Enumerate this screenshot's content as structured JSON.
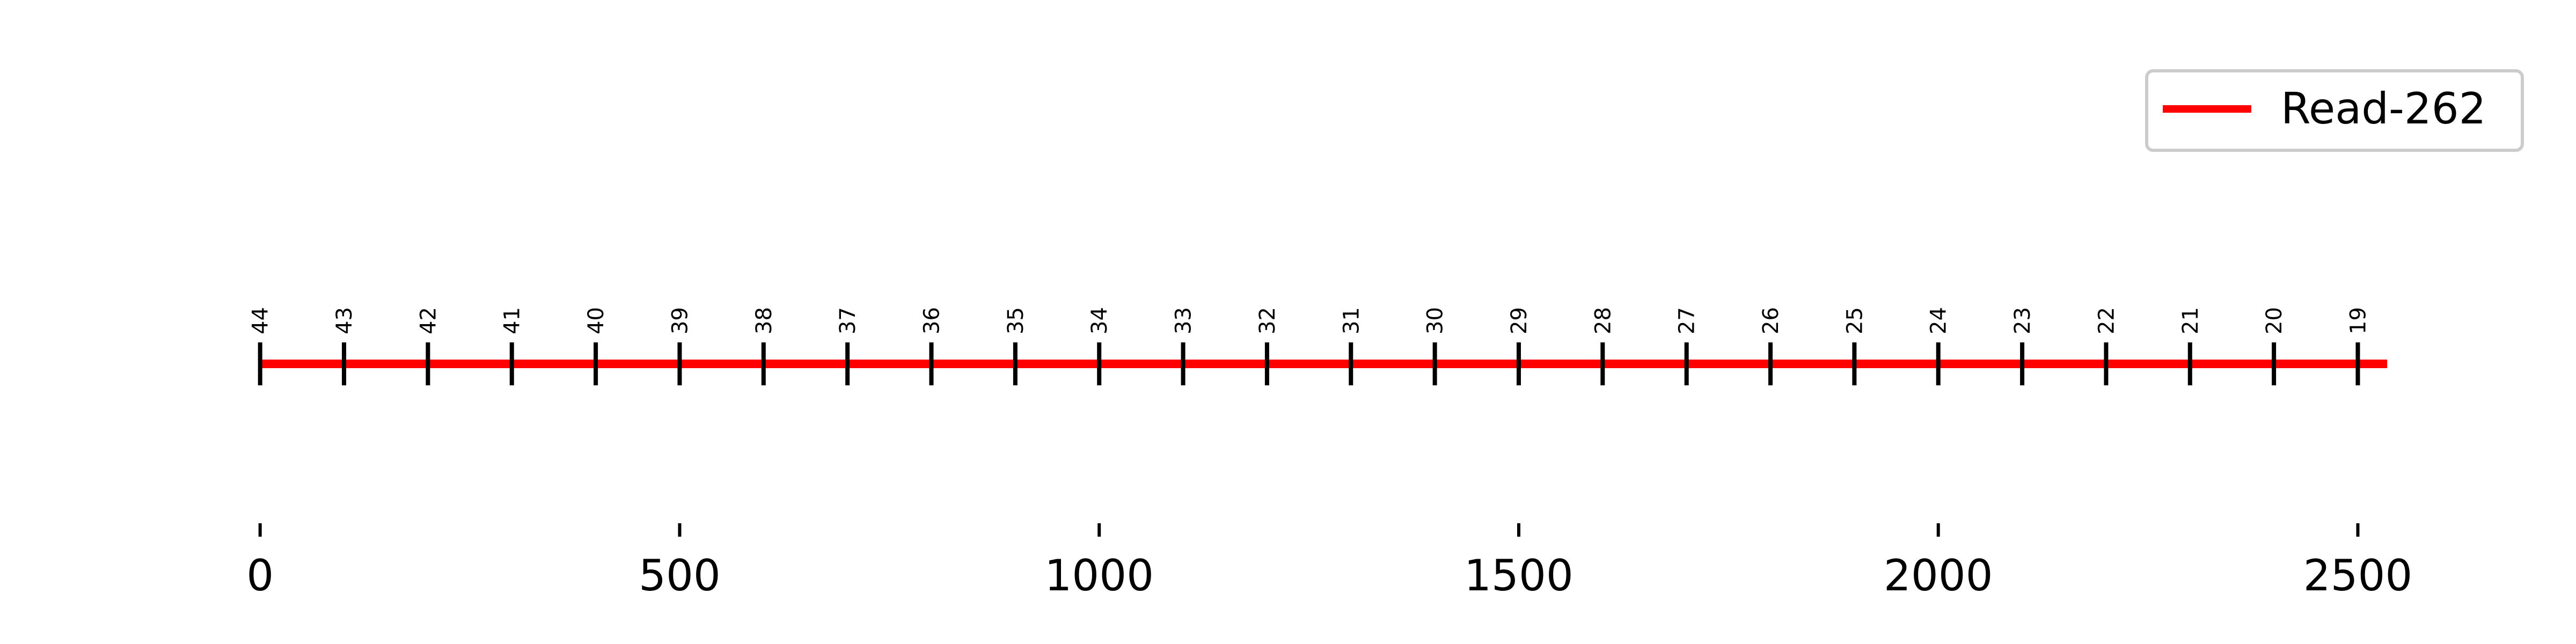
{
  "chart_data": {
    "type": "line",
    "series": [
      {
        "name": "Read-262",
        "color": "#ff0000",
        "x_start": 0,
        "x_end": 2535,
        "positions": [
          0,
          100,
          200,
          300,
          400,
          500,
          600,
          700,
          800,
          900,
          1000,
          1100,
          1200,
          1300,
          1400,
          1500,
          1600,
          1700,
          1800,
          1900,
          2000,
          2100,
          2200,
          2300,
          2400,
          2500
        ],
        "position_labels": [
          "44",
          "43",
          "42",
          "41",
          "40",
          "39",
          "38",
          "37",
          "36",
          "35",
          "34",
          "33",
          "32",
          "31",
          "30",
          "29",
          "28",
          "27",
          "26",
          "25",
          "24",
          "23",
          "22",
          "21",
          "20",
          "19"
        ]
      }
    ],
    "x_ticks": [
      0,
      500,
      1000,
      1500,
      2000,
      2500
    ],
    "x_tick_labels": [
      "0",
      "500",
      "1000",
      "1500",
      "2000",
      "2500"
    ],
    "xlim": [
      -310,
      2760
    ],
    "legend": {
      "placement": "top-right",
      "entries": [
        "Read-262"
      ]
    },
    "grid": false
  }
}
